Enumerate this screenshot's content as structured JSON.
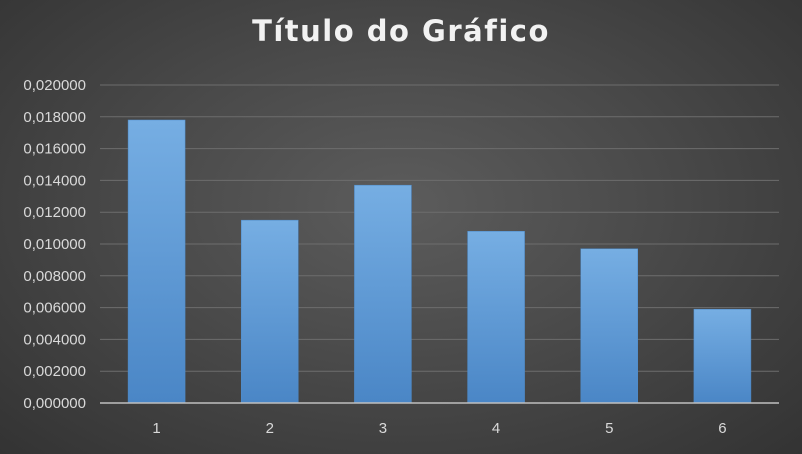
{
  "chart_data": {
    "type": "bar",
    "title": "Título do Gráfico",
    "categories": [
      "1",
      "2",
      "3",
      "4",
      "5",
      "6"
    ],
    "values": [
      0.0178,
      0.0115,
      0.0137,
      0.0108,
      0.0097,
      0.0059
    ],
    "ylim": [
      0,
      0.02
    ],
    "ytick_values": [
      0,
      0.002,
      0.004,
      0.006,
      0.008,
      0.01,
      0.012,
      0.014,
      0.016,
      0.018,
      0.02
    ],
    "ytick_labels": [
      "0,000000",
      "0,002000",
      "0,004000",
      "0,006000",
      "0,008000",
      "0,010000",
      "0,012000",
      "0,014000",
      "0,016000",
      "0,018000",
      "0,020000"
    ],
    "xlabel": "",
    "ylabel": "",
    "grid": true,
    "legend": "none",
    "bar_color": "#5b9bd5"
  }
}
